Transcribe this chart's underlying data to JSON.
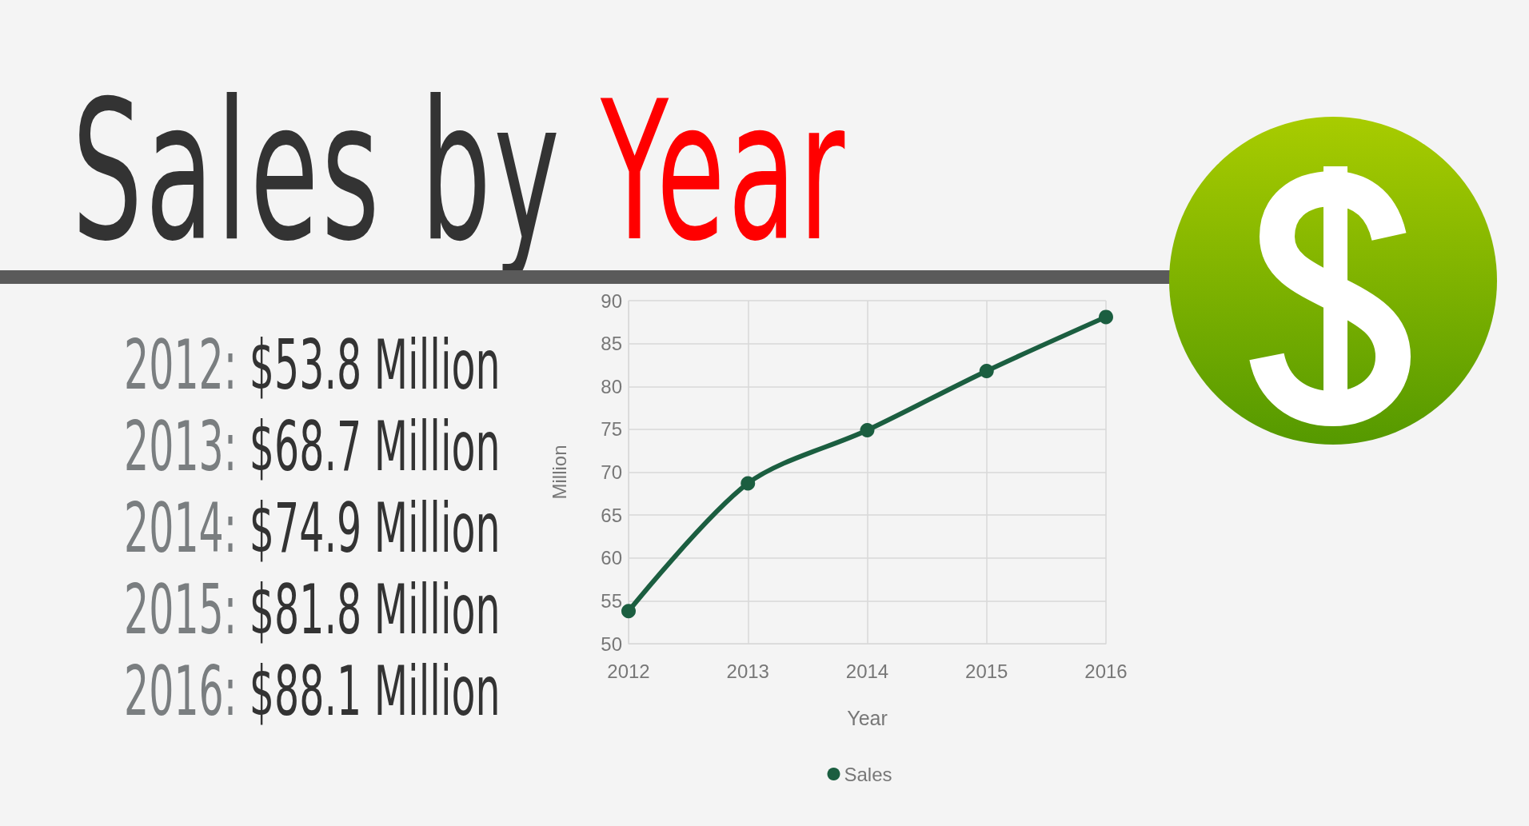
{
  "chart_data": {
    "type": "line",
    "title": "Sales by Year",
    "xlabel": "Year",
    "ylabel": "Million",
    "categories": [
      "2012",
      "2013",
      "2014",
      "2015",
      "2016"
    ],
    "series": [
      {
        "name": "Sales",
        "color": "#1b5e40",
        "values": [
          53.8,
          68.7,
          74.9,
          81.8,
          88.1
        ]
      }
    ],
    "ylim": [
      50,
      90
    ],
    "yticks": [
      50,
      55,
      60,
      65,
      70,
      75,
      80,
      85,
      90
    ],
    "grid": true,
    "legend": "bottom",
    "marker": "circle",
    "line_style": "solid",
    "annotations": [
      "2012: $53.8 Million",
      "2013: $68.7 Million",
      "2014: $74.9 Million",
      "2015: $81.8 Million",
      "2016: $88.1 Million"
    ]
  }
}
